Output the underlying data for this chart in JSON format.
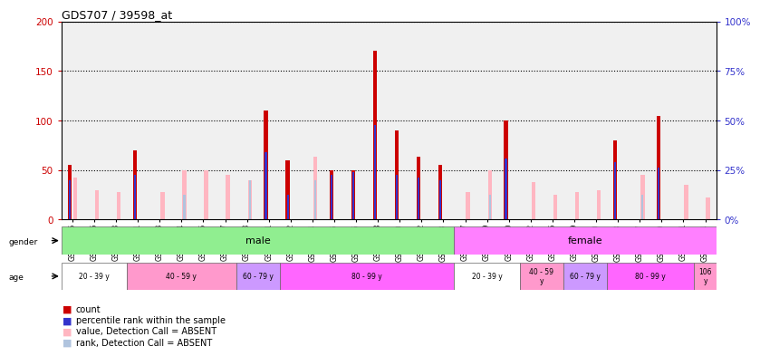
{
  "title": "GDS707 / 39598_at",
  "samples": [
    "GSM27015",
    "GSM27016",
    "GSM27018",
    "GSM27021",
    "GSM27023",
    "GSM27024",
    "GSM27025",
    "GSM27027",
    "GSM27028",
    "GSM27031",
    "GSM27032",
    "GSM27034",
    "GSM27035",
    "GSM27036",
    "GSM27038",
    "GSM27040",
    "GSM27042",
    "GSM27043",
    "GSM27017",
    "GSM27019",
    "GSM27020",
    "GSM27022",
    "GSM27026",
    "GSM27029",
    "GSM27030",
    "GSM27033",
    "GSM27037",
    "GSM27039",
    "GSM27041",
    "GSM27044"
  ],
  "count": [
    55,
    0,
    0,
    70,
    0,
    0,
    0,
    0,
    0,
    110,
    60,
    0,
    50,
    50,
    170,
    90,
    63,
    55,
    0,
    0,
    100,
    0,
    0,
    0,
    0,
    80,
    0,
    105,
    0,
    0
  ],
  "percentile": [
    40,
    0,
    0,
    45,
    0,
    0,
    0,
    0,
    0,
    68,
    25,
    0,
    45,
    48,
    95,
    45,
    42,
    40,
    0,
    0,
    62,
    0,
    0,
    0,
    0,
    58,
    0,
    52,
    0,
    0
  ],
  "absent_value": [
    42,
    30,
    28,
    0,
    28,
    50,
    50,
    45,
    40,
    0,
    0,
    63,
    0,
    0,
    0,
    0,
    0,
    0,
    28,
    50,
    0,
    38,
    25,
    28,
    30,
    0,
    45,
    0,
    35,
    22
  ],
  "absent_rank": [
    0,
    0,
    0,
    0,
    0,
    25,
    0,
    0,
    40,
    0,
    0,
    40,
    0,
    0,
    0,
    0,
    0,
    0,
    0,
    25,
    0,
    0,
    0,
    0,
    0,
    0,
    25,
    0,
    0,
    0
  ],
  "gender_groups": [
    {
      "label": "male",
      "start": 0,
      "end": 18,
      "color": "#90EE90"
    },
    {
      "label": "female",
      "start": 18,
      "end": 30,
      "color": "#FF80FF"
    }
  ],
  "age_groups": [
    {
      "label": "20 - 39 y",
      "start": 0,
      "end": 3,
      "color": "#FFFFFF"
    },
    {
      "label": "40 - 59 y",
      "start": 3,
      "end": 8,
      "color": "#FF99CC"
    },
    {
      "label": "60 - 79 y",
      "start": 8,
      "end": 10,
      "color": "#CC99FF"
    },
    {
      "label": "80 - 99 y",
      "start": 10,
      "end": 18,
      "color": "#FF66FF"
    },
    {
      "label": "20 - 39 y",
      "start": 18,
      "end": 21,
      "color": "#FFFFFF"
    },
    {
      "label": "40 - 59\ny",
      "start": 21,
      "end": 23,
      "color": "#FF99CC"
    },
    {
      "label": "60 - 79 y",
      "start": 23,
      "end": 25,
      "color": "#CC99FF"
    },
    {
      "label": "80 - 99 y",
      "start": 25,
      "end": 29,
      "color": "#FF66FF"
    },
    {
      "label": "106\ny",
      "start": 29,
      "end": 30,
      "color": "#FF99CC"
    }
  ],
  "ylim_left": [
    0,
    200
  ],
  "ylim_right": [
    0,
    100
  ],
  "yticks_left": [
    0,
    50,
    100,
    150,
    200
  ],
  "yticks_right": [
    0,
    25,
    50,
    75,
    100
  ],
  "color_count": "#CC0000",
  "color_percentile": "#3333CC",
  "color_absent_value": "#FFB6C1",
  "color_absent_rank": "#B0C4DE",
  "bg_color": "#F0F0F0"
}
